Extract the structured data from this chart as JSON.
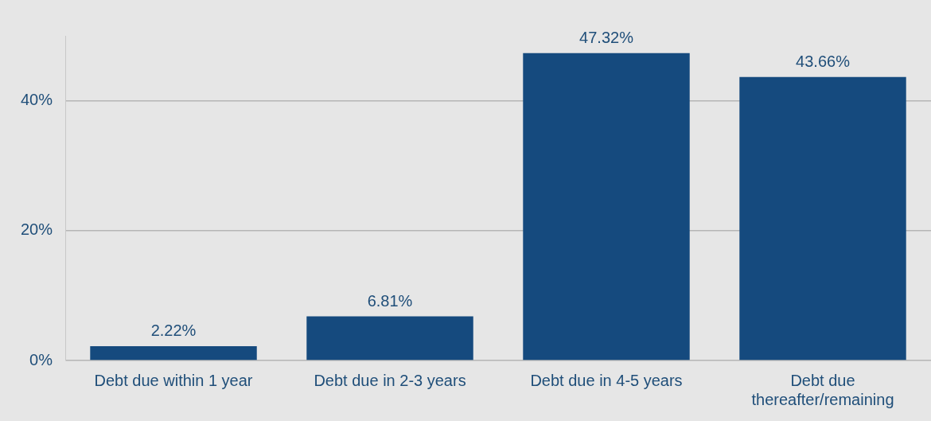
{
  "chart_data": {
    "type": "bar",
    "categories": [
      "Debt due within 1 year",
      "Debt due in 2-3 years",
      "Debt due in 4-5 years",
      "Debt due thereafter/remaining"
    ],
    "values": [
      2.22,
      6.81,
      47.32,
      43.66
    ],
    "value_labels": [
      "2.22%",
      "6.81%",
      "47.32%",
      "43.66%"
    ],
    "color": "#154a7e",
    "ylim": [
      0,
      50
    ],
    "yticks": [
      {
        "value": 0,
        "label": "0%"
      },
      {
        "value": 20,
        "label": "20%"
      },
      {
        "value": 40,
        "label": "40%"
      }
    ],
    "grid": "y",
    "legend": false
  }
}
